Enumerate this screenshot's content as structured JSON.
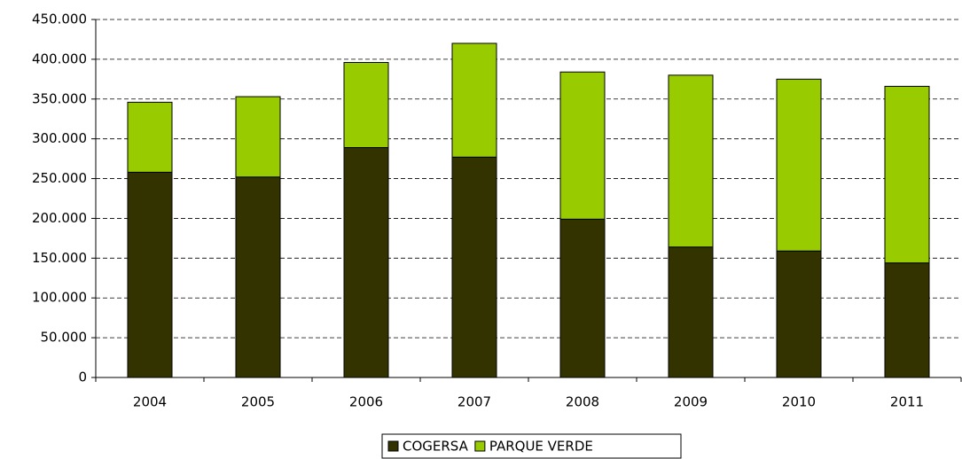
{
  "chart_data": {
    "type": "stacked_bar",
    "categories": [
      "2004",
      "2005",
      "2006",
      "2007",
      "2008",
      "2009",
      "2010",
      "2011"
    ],
    "series": [
      {
        "name": "COGERSA",
        "color": "#333300",
        "values": [
          258000,
          252000,
          289000,
          277000,
          199000,
          164000,
          159000,
          144000
        ]
      },
      {
        "name": "PARQUE VERDE",
        "color": "#99cc00",
        "values": [
          88000,
          101000,
          107000,
          143000,
          185000,
          216000,
          216000,
          222000
        ]
      }
    ],
    "ylim": [
      0,
      450000
    ],
    "yticks": [
      0,
      {
        "value": 50000,
        "label": "50.000"
      },
      {
        "value": 100000,
        "label": "100.000"
      },
      {
        "value": 150000,
        "label": "150.000"
      },
      {
        "value": 200000,
        "label": "200.000"
      },
      {
        "value": 250000,
        "label": "250.000"
      },
      {
        "value": 300000,
        "label": "300.000"
      },
      {
        "value": 350000,
        "label": "350.000"
      },
      {
        "value": 400000,
        "label": "400.000"
      },
      {
        "value": 450000,
        "label": "450.000"
      }
    ],
    "grid": true,
    "legend": "bottom"
  }
}
